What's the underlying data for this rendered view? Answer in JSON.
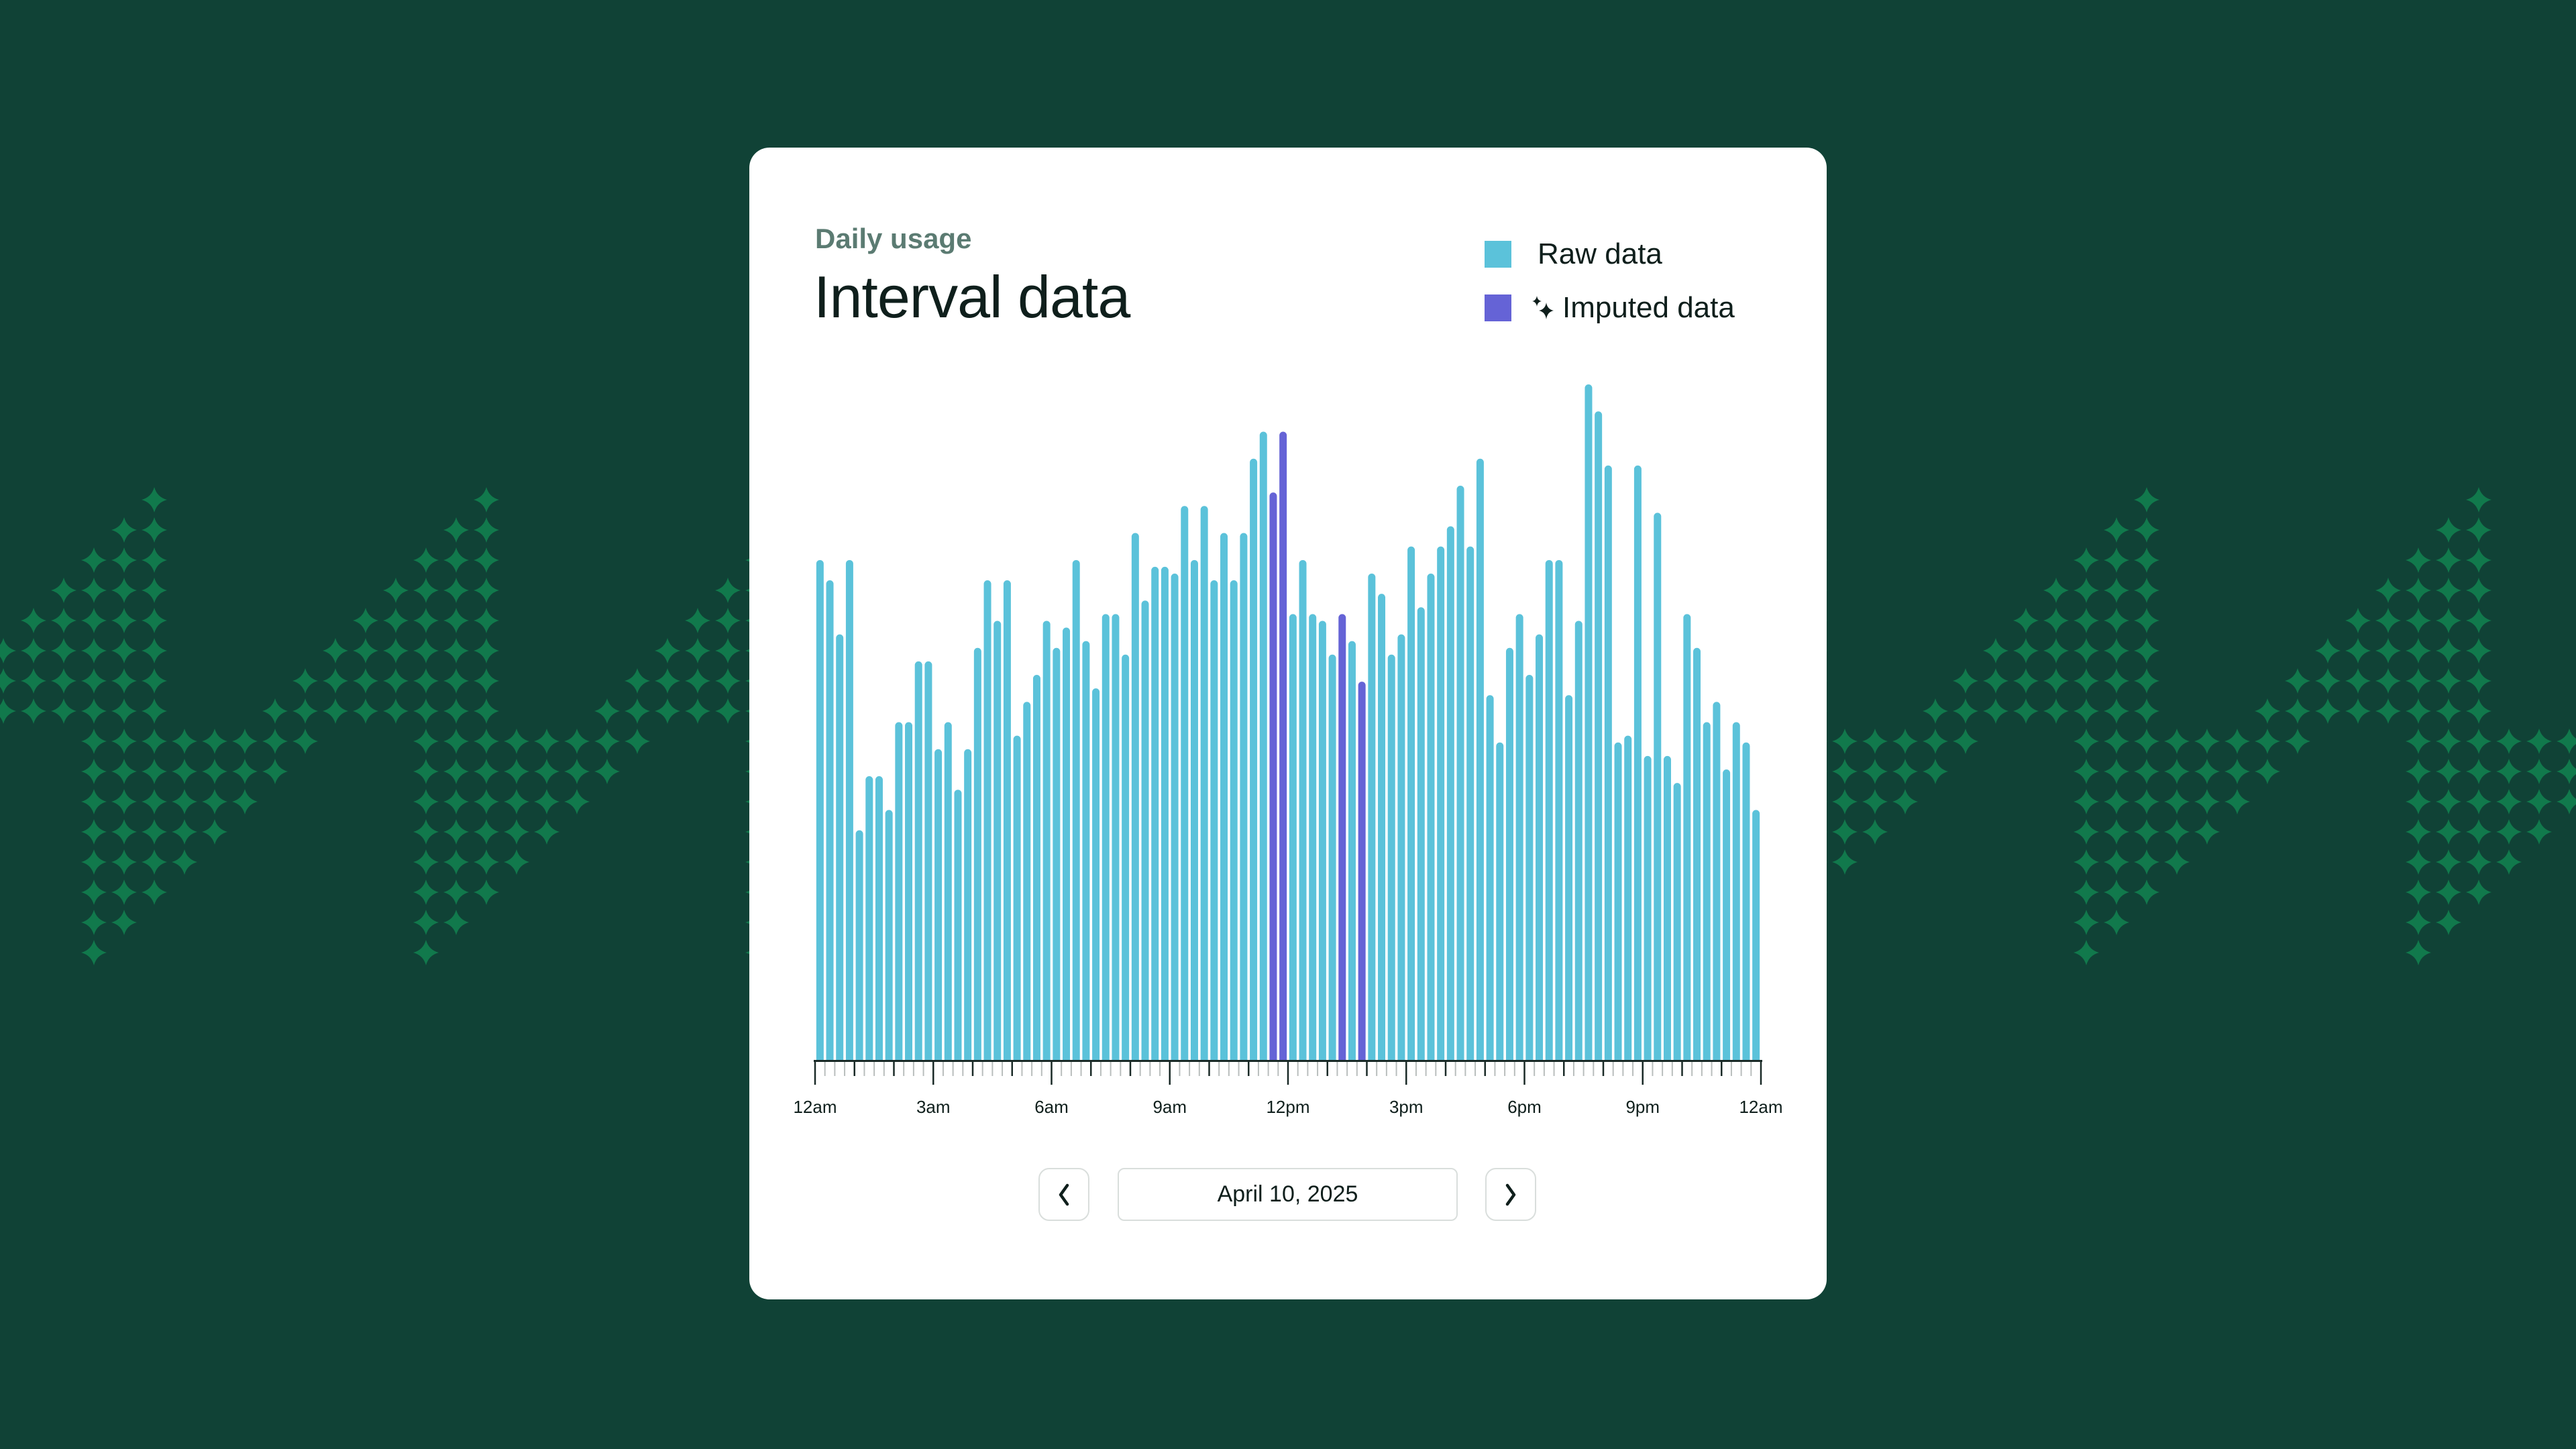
{
  "colors": {
    "background": "#104236",
    "pattern": "#11794c",
    "raw": "#5bc2da",
    "imputed": "#6563d6",
    "text": "#0f1f1c",
    "subtitle": "#5b7b72"
  },
  "header": {
    "subtitle": "Daily usage",
    "title": "Interval data"
  },
  "legend": [
    {
      "label": "Raw data",
      "color": "#5bc2da",
      "icon": "square-swatch"
    },
    {
      "label": "Imputed data",
      "color": "#6563d6",
      "icon": "sparkles-icon"
    }
  ],
  "date_nav": {
    "prev_icon": "chevron-left-icon",
    "date": "April 10, 2025",
    "next_icon": "chevron-right-icon"
  },
  "chart_data": {
    "type": "bar",
    "interval": "15 min",
    "x_range": [
      "12am",
      "12am"
    ],
    "xtick_labels": [
      "12am",
      "3am",
      "6am",
      "9am",
      "12pm",
      "3pm",
      "6pm",
      "9pm",
      "12am"
    ],
    "y_axis_shown": false,
    "grid": false,
    "legend_placement": "top-right",
    "values": [
      74,
      71,
      63,
      74,
      34,
      42,
      42,
      37,
      50,
      50,
      59,
      59,
      46,
      50,
      40,
      46,
      61,
      71,
      65,
      71,
      48,
      53,
      57,
      65,
      61,
      64,
      74,
      62,
      55,
      66,
      66,
      60,
      78,
      68,
      73,
      73,
      72,
      82,
      74,
      82,
      71,
      78,
      71,
      78,
      89,
      93,
      84,
      93,
      66,
      74,
      66,
      65,
      60,
      66,
      62,
      56,
      72,
      69,
      60,
      63,
      76,
      67,
      72,
      76,
      79,
      85,
      76,
      89,
      54,
      47,
      61,
      66,
      57,
      63,
      74,
      74,
      54,
      65,
      100,
      96,
      88,
      47,
      48,
      88,
      45,
      81,
      45,
      41,
      66,
      61,
      50,
      53,
      43,
      50,
      47,
      37
    ],
    "imputed_indices": [
      46,
      47,
      53,
      55
    ],
    "series": [
      {
        "name": "Raw data"
      },
      {
        "name": "Imputed data"
      }
    ]
  }
}
